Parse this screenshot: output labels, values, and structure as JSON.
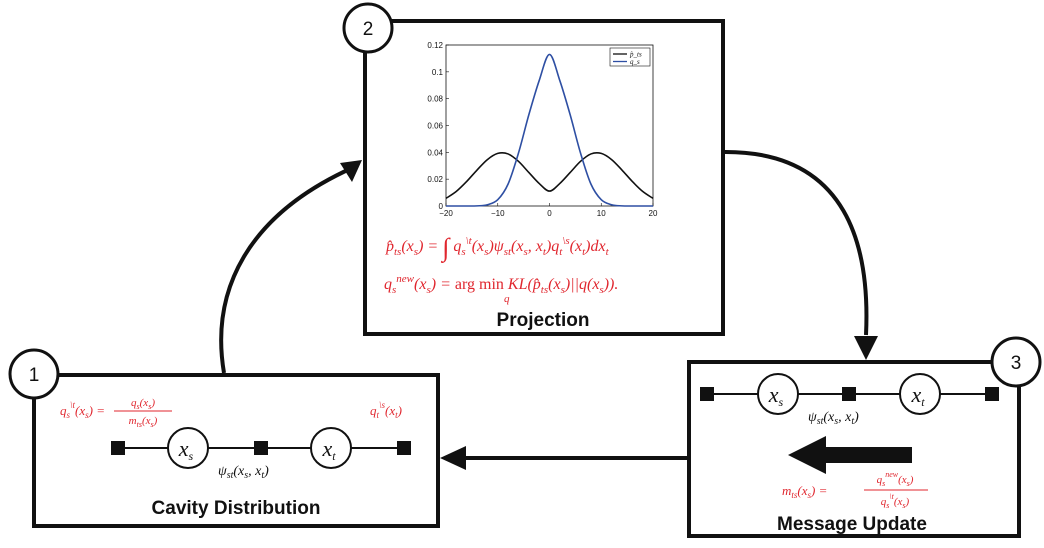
{
  "steps": [
    {
      "number": "1",
      "title": "Cavity Distribution"
    },
    {
      "number": "2",
      "title": "Projection"
    },
    {
      "number": "3",
      "title": "Message Update"
    }
  ],
  "box1": {
    "cavity_q_s": "q_s^{\\t}(x_s) = q_s(x_s) / m_ts(x_s)",
    "cavity_q_t": "q_t^{\\s}(x_t)",
    "factor": "ψ_st(x_s, x_t)",
    "node_s": "x_s",
    "node_t": "x_t"
  },
  "box2": {
    "equation_1": "p̂_ts(x_s) = ∫ q_s^{\\t}(x_s) ψ_st(x_s, x_t) q_t^{\\s}(x_t) dx_t",
    "equation_2": "q_s^{new}(x_s) = arg min_q KL(p̂_ts(x_s) || q(x_s))."
  },
  "box3": {
    "factor": "ψ_st(x_s, x_t)",
    "node_s": "x_s",
    "node_t": "x_t",
    "equation": "m_ts(x_s) = q_s^{new}(x_s) / q_s^{\\t}(x_s)"
  },
  "colors": {
    "equation": "#e0262e",
    "line": "#111111",
    "series_q": "#2e4fa3",
    "series_p": "#111111"
  },
  "chart_data": {
    "type": "line",
    "xlim": [
      -20,
      20
    ],
    "ylim": [
      0,
      0.12
    ],
    "x_ticks": [
      -20,
      -10,
      0,
      10,
      20
    ],
    "y_ticks": [
      0,
      0.02,
      0.04,
      0.06,
      0.08,
      0.1,
      0.12
    ],
    "x_tick_labels": [
      "−20",
      "−10",
      "0",
      "10",
      "20"
    ],
    "y_tick_labels": [
      "0",
      "0.02",
      "0.04",
      "0.06",
      "0.08",
      "0.1",
      "0.12"
    ],
    "legend_position": "top-right",
    "series": [
      {
        "name": "p̂_ts",
        "color": "#111111",
        "x": [
          -20,
          -18,
          -16,
          -14,
          -12,
          -10,
          -8,
          -6,
          -4,
          -2,
          0,
          2,
          4,
          6,
          8,
          10,
          12,
          14,
          16,
          18,
          20
        ],
        "y": [
          0.0057,
          0.0109,
          0.0183,
          0.0268,
          0.0346,
          0.0392,
          0.0388,
          0.0333,
          0.025,
          0.0168,
          0.0111,
          0.0168,
          0.025,
          0.0333,
          0.0388,
          0.0392,
          0.0346,
          0.0268,
          0.0183,
          0.0109,
          0.0057
        ]
      },
      {
        "name": "q_s",
        "color": "#2e4fa3",
        "x": [
          -20,
          -18,
          -16,
          -14,
          -12,
          -10,
          -8,
          -6,
          -4,
          -2,
          0,
          2,
          4,
          6,
          8,
          10,
          12,
          14,
          16,
          18,
          20
        ],
        "y": [
          0.0,
          0.0,
          0.0,
          0.0001,
          0.0009,
          0.0047,
          0.0164,
          0.0394,
          0.0679,
          0.0934,
          0.113,
          0.0934,
          0.0679,
          0.0394,
          0.0164,
          0.0047,
          0.0009,
          0.0001,
          0.0,
          0.0,
          0.0
        ]
      }
    ]
  }
}
